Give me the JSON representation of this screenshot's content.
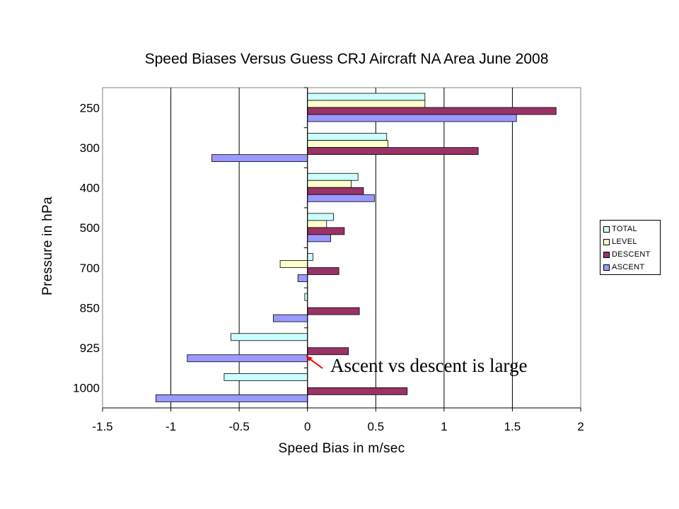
{
  "chart_data": {
    "type": "bar",
    "orientation": "horizontal",
    "title": "Speed Biases Versus Guess CRJ Aircraft NA Area June 2008",
    "xlabel": "Speed Bias in m/sec",
    "ylabel": "Pressure in hPa",
    "xlim": [
      -1.5,
      2
    ],
    "xticks": [
      "-1.5",
      "-1",
      "-0.5",
      "0",
      "0.5",
      "1",
      "1.5",
      "2"
    ],
    "categories": [
      "250",
      "300",
      "400",
      "500",
      "700",
      "850",
      "925",
      "1000"
    ],
    "grid": "vertical major gridlines",
    "legend_position": "right",
    "series": [
      {
        "name": "TOTAL",
        "color": "#ccffff",
        "values": [
          0.86,
          0.58,
          0.37,
          0.19,
          0.04,
          -0.02,
          -0.56,
          -0.61
        ]
      },
      {
        "name": "LEVEL",
        "color": "#ffffcc",
        "values": [
          0.86,
          0.59,
          0.32,
          0.14,
          -0.2,
          0.0,
          0.0,
          0.0
        ]
      },
      {
        "name": "DESCENT",
        "color": "#993366",
        "values": [
          1.82,
          1.25,
          0.41,
          0.27,
          0.23,
          0.38,
          0.3,
          0.73
        ]
      },
      {
        "name": "ASCENT",
        "color": "#9999ff",
        "values": [
          1.53,
          -0.7,
          0.49,
          0.17,
          -0.07,
          -0.25,
          -0.88,
          -1.11
        ]
      }
    ],
    "annotations": [
      {
        "text": "Ascent vs descent is large",
        "color": "#ff0000",
        "target_category": "925"
      }
    ]
  }
}
